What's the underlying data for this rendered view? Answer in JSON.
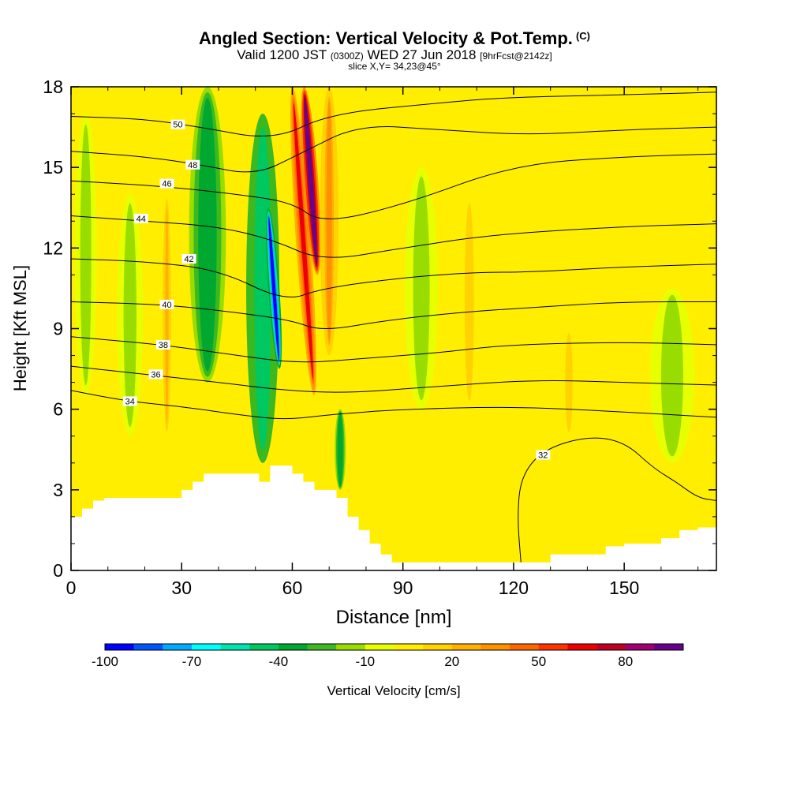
{
  "header": {
    "title": "Angled Section: Vertical Velocity & Pot.Temp.",
    "title_unit": "(C)",
    "subtitle_valid": "Valid 1200 JST",
    "subtitle_z": "(0300Z)",
    "subtitle_date": "WED 27 Jun 2018",
    "subtitle_fcst": "[9hrFcst@2142z]",
    "slice_text": "slice X,Y= 34,23@45°"
  },
  "chart_data": {
    "type": "heatmap",
    "title": "Angled Section: Vertical Velocity & Pot.Temp. (C)",
    "xlabel": "Distance [nm]",
    "ylabel": "Height [Kft MSL]",
    "xlim": [
      0,
      175
    ],
    "ylim": [
      0,
      18
    ],
    "x_ticks": [
      "0",
      "30",
      "60",
      "90",
      "120",
      "150"
    ],
    "y_ticks": [
      "0",
      "3",
      "6",
      "9",
      "12",
      "15",
      "18"
    ],
    "colorbar": {
      "label": "Vertical Velocity [cm/s]",
      "tick_labels": [
        "-100",
        "-70",
        "-40",
        "-10",
        "20",
        "50",
        "80"
      ],
      "levels": [
        -100,
        -90,
        -80,
        -70,
        -60,
        -50,
        -40,
        -30,
        -20,
        -10,
        0,
        10,
        20,
        30,
        40,
        50,
        60,
        70,
        80,
        90
      ],
      "colors": [
        "#0000ff",
        "#0055ff",
        "#00aaff",
        "#00ffff",
        "#00e5b0",
        "#00c860",
        "#00a830",
        "#3cb820",
        "#99dd00",
        "#e8ff00",
        "#ffee00",
        "#ffd200",
        "#ffb000",
        "#ff9000",
        "#ff6600",
        "#ff3300",
        "#ee0000",
        "#c00020",
        "#a00070",
        "#66008b"
      ]
    },
    "terrain_profile": {
      "x": [
        0,
        3,
        6,
        9,
        12,
        15,
        18,
        21,
        24,
        27,
        30,
        33,
        36,
        39,
        42,
        45,
        48,
        51,
        54,
        57,
        60,
        63,
        66,
        69,
        72,
        75,
        78,
        81,
        84,
        87,
        90,
        95,
        100,
        105,
        110,
        115,
        120,
        125,
        130,
        135,
        140,
        145,
        150,
        155,
        160,
        165,
        170,
        175
      ],
      "y": [
        2.0,
        2.3,
        2.6,
        2.7,
        2.7,
        2.7,
        2.7,
        2.7,
        2.7,
        2.7,
        3.0,
        3.3,
        3.6,
        3.6,
        3.6,
        3.6,
        3.6,
        3.3,
        3.9,
        3.9,
        3.6,
        3.3,
        3.0,
        3.0,
        2.7,
        2.0,
        1.5,
        1.0,
        0.6,
        0.3,
        0.3,
        0.3,
        0.3,
        0.3,
        0.3,
        0.3,
        0.3,
        0.3,
        0.6,
        0.6,
        0.6,
        0.9,
        1.0,
        1.0,
        1.2,
        1.5,
        1.6,
        1.6
      ]
    },
    "vertical_velocity_features": [
      {
        "x_center": 37,
        "y_range": [
          7,
          18
        ],
        "width_nm": 10,
        "value": -40
      },
      {
        "x_center": 52,
        "y_range": [
          4,
          17
        ],
        "width_nm": 9,
        "value": -50
      },
      {
        "x_center": 55,
        "y_range": [
          7.5,
          13.5
        ],
        "width_nm": 3,
        "value": -95
      },
      {
        "x_center": 63,
        "y_range": [
          6.5,
          18
        ],
        "width_nm": 4,
        "value": 60
      },
      {
        "x_center": 65,
        "y_range": [
          11,
          18
        ],
        "width_nm": 4,
        "value": 90
      },
      {
        "x_center": 70,
        "y_range": [
          8,
          18
        ],
        "width_nm": 5,
        "value": 30
      },
      {
        "x_center": 73,
        "y_range": [
          3,
          6
        ],
        "width_nm": 3,
        "value": -40
      },
      {
        "x_center": 4,
        "y_range": [
          6.5,
          17
        ],
        "width_nm": 6,
        "value": -15
      },
      {
        "x_center": 16,
        "y_range": [
          5,
          14
        ],
        "width_nm": 7,
        "value": -15
      },
      {
        "x_center": 95,
        "y_range": [
          6,
          15
        ],
        "width_nm": 9,
        "value": -15
      },
      {
        "x_center": 163,
        "y_range": [
          4,
          10.5
        ],
        "width_nm": 12,
        "value": -15
      },
      {
        "x_center": 26,
        "y_range": [
          5,
          14
        ],
        "width_nm": 3,
        "value": 20
      },
      {
        "x_center": 108,
        "y_range": [
          6,
          14
        ],
        "width_nm": 5,
        "value": 15
      },
      {
        "x_center": 135,
        "y_range": [
          5,
          9
        ],
        "width_nm": 4,
        "value": 15
      }
    ],
    "theta_contours": [
      {
        "level": 34,
        "label_x": 16,
        "label_y": 6.3,
        "points": [
          [
            0,
            6.7
          ],
          [
            15,
            6.3
          ],
          [
            30,
            6.1
          ],
          [
            45,
            5.8
          ],
          [
            58,
            5.6
          ],
          [
            70,
            5.8
          ],
          [
            90,
            6.0
          ],
          [
            120,
            6.1
          ],
          [
            150,
            5.9
          ],
          [
            175,
            5.7
          ]
        ]
      },
      {
        "level": 36,
        "label_x": 23,
        "label_y": 7.3,
        "points": [
          [
            0,
            7.6
          ],
          [
            20,
            7.3
          ],
          [
            40,
            7.0
          ],
          [
            58,
            6.7
          ],
          [
            74,
            6.6
          ],
          [
            95,
            6.8
          ],
          [
            125,
            7.1
          ],
          [
            150,
            7.0
          ],
          [
            175,
            6.9
          ]
        ]
      },
      {
        "level": 38,
        "label_x": 25,
        "label_y": 8.4,
        "points": [
          [
            0,
            8.7
          ],
          [
            25,
            8.4
          ],
          [
            45,
            8.0
          ],
          [
            62,
            7.7
          ],
          [
            80,
            7.9
          ],
          [
            100,
            8.1
          ],
          [
            118,
            8.4
          ],
          [
            150,
            8.5
          ],
          [
            175,
            8.4
          ]
        ]
      },
      {
        "level": 40,
        "label_x": 26,
        "label_y": 9.9,
        "points": [
          [
            0,
            10.0
          ],
          [
            25,
            9.9
          ],
          [
            45,
            9.6
          ],
          [
            60,
            9.3
          ],
          [
            68,
            8.9
          ],
          [
            85,
            9.3
          ],
          [
            105,
            9.6
          ],
          [
            126,
            9.8
          ],
          [
            150,
            10.0
          ],
          [
            175,
            10.0
          ]
        ]
      },
      {
        "level": 42,
        "label_x": 32,
        "label_y": 11.6,
        "points": [
          [
            0,
            11.6
          ],
          [
            20,
            11.5
          ],
          [
            40,
            11.2
          ],
          [
            58,
            10.0
          ],
          [
            68,
            10.5
          ],
          [
            90,
            10.9
          ],
          [
            110,
            11.1
          ],
          [
            124,
            11.1
          ],
          [
            150,
            11.3
          ],
          [
            175,
            11.4
          ]
        ]
      },
      {
        "level": 44,
        "label_x": 19,
        "label_y": 13.1,
        "points": [
          [
            0,
            13.2
          ],
          [
            20,
            13.0
          ],
          [
            40,
            12.8
          ],
          [
            55,
            12.3
          ],
          [
            68,
            11.5
          ],
          [
            90,
            12.0
          ],
          [
            114,
            12.5
          ],
          [
            150,
            12.8
          ],
          [
            175,
            12.9
          ]
        ]
      },
      {
        "level": 46,
        "label_x": 26,
        "label_y": 14.4,
        "points": [
          [
            0,
            14.5
          ],
          [
            25,
            14.3
          ],
          [
            45,
            14.0
          ],
          [
            60,
            13.7
          ],
          [
            68,
            12.9
          ],
          [
            90,
            13.6
          ],
          [
            120,
            15.1
          ],
          [
            150,
            15.4
          ],
          [
            175,
            15.5
          ]
        ]
      },
      {
        "level": 48,
        "label_x": 33,
        "label_y": 15.1,
        "points": [
          [
            0,
            15.6
          ],
          [
            20,
            15.4
          ],
          [
            35,
            15.1
          ],
          [
            50,
            14.7
          ],
          [
            62,
            15.5
          ],
          [
            78,
            16.6
          ],
          [
            100,
            16.4
          ],
          [
            124,
            16.2
          ],
          [
            150,
            16.4
          ],
          [
            175,
            16.5
          ]
        ]
      },
      {
        "level": 50,
        "label_x": 29,
        "label_y": 16.6,
        "points": [
          [
            0,
            16.9
          ],
          [
            20,
            16.8
          ],
          [
            35,
            16.5
          ],
          [
            55,
            16.0
          ],
          [
            70,
            17.0
          ],
          [
            100,
            17.4
          ],
          [
            117,
            17.6
          ],
          [
            150,
            17.7
          ],
          [
            175,
            17.8
          ]
        ]
      },
      {
        "level": 32,
        "label_x": 128,
        "label_y": 4.3,
        "points": [
          [
            122,
            0.3
          ],
          [
            121,
            2.0
          ],
          [
            122,
            3.5
          ],
          [
            128,
            4.5
          ],
          [
            140,
            5.0
          ],
          [
            150,
            4.8
          ],
          [
            158,
            3.8
          ],
          [
            164,
            3.3
          ],
          [
            170,
            2.7
          ],
          [
            175,
            2.6
          ]
        ]
      }
    ],
    "grid": false
  }
}
